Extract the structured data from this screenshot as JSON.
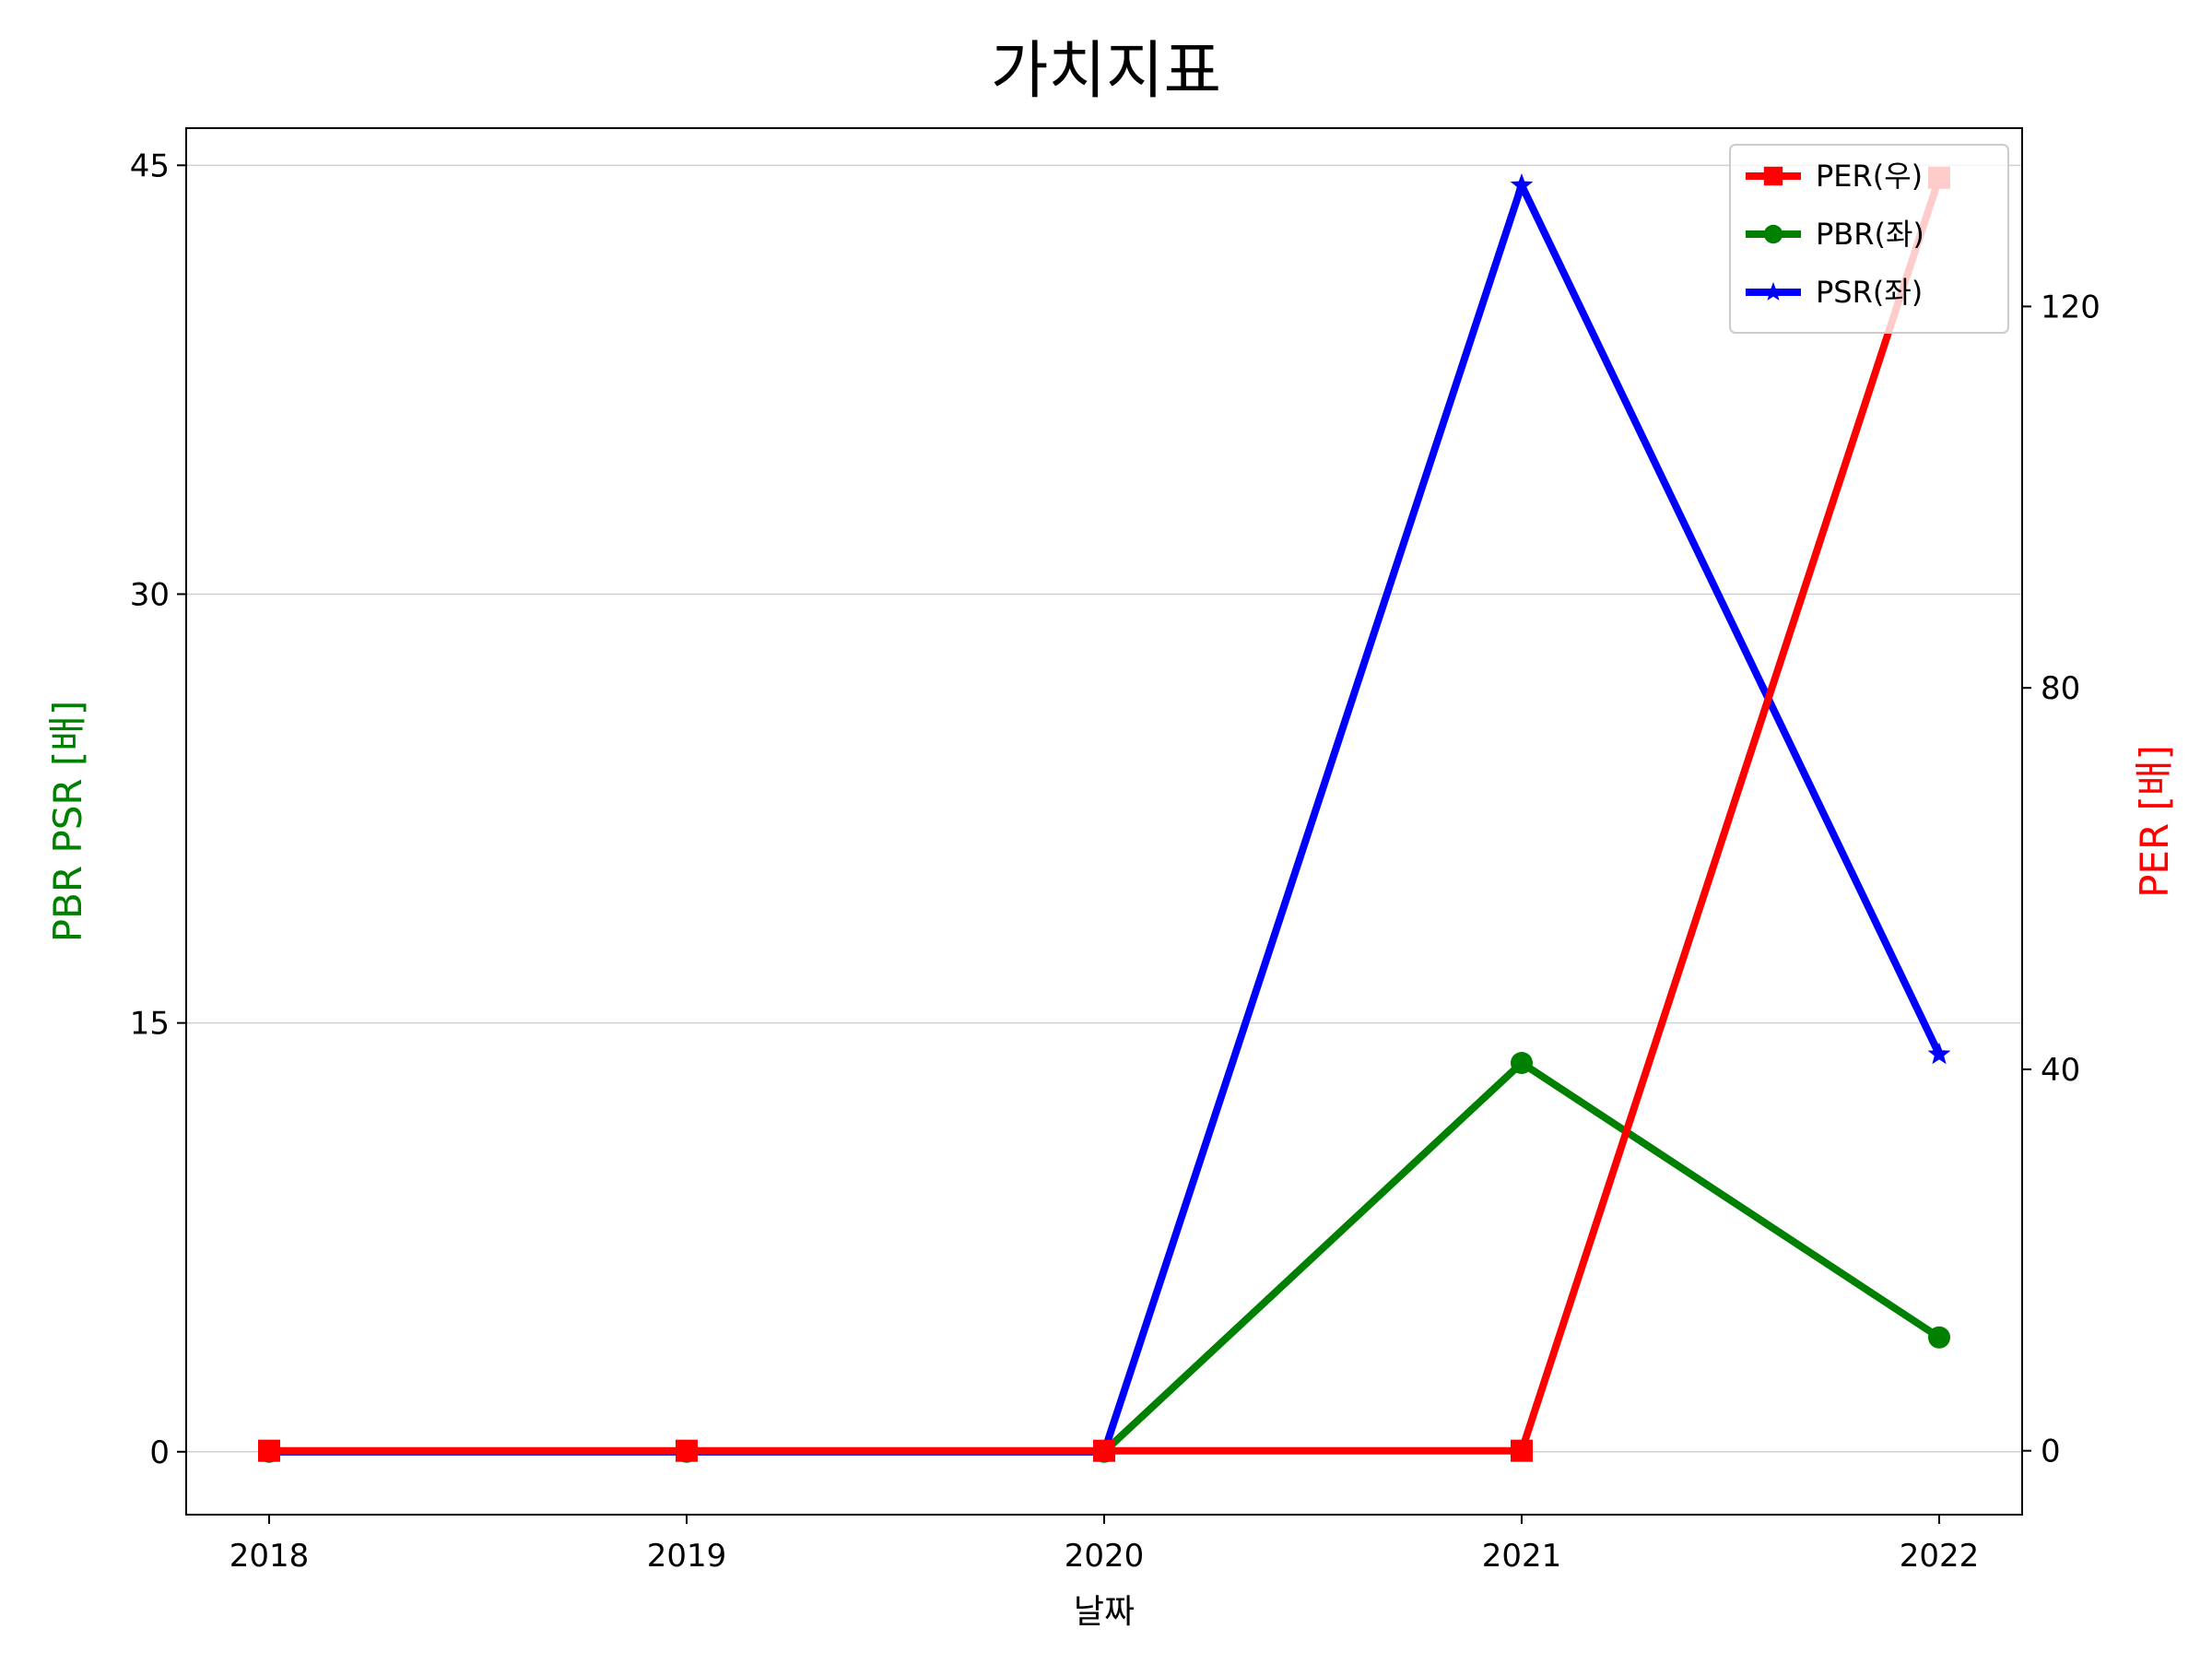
{
  "chart_data": {
    "type": "line",
    "title": "가치지표",
    "xlabel": "날짜",
    "ylabel_left": "PBR PSR [배]",
    "ylabel_right": "PER [배]",
    "categories": [
      "2018",
      "2019",
      "2020",
      "2021",
      "2022"
    ],
    "y_left": {
      "ticks": [
        0,
        15,
        30,
        45
      ],
      "ylim": [
        -2.2,
        46.3
      ],
      "grid": true
    },
    "y_right": {
      "ticks": [
        0,
        40,
        80,
        120
      ],
      "ylim": [
        -6.7,
        138.7
      ]
    },
    "series": [
      {
        "name": "PER(우)",
        "axis": "right",
        "color": "#ff0000",
        "marker": "square",
        "values": [
          0,
          0,
          0,
          0,
          133.5
        ]
      },
      {
        "name": "PBR(좌)",
        "axis": "left",
        "color": "#008000",
        "marker": "circle",
        "values": [
          0,
          0,
          0,
          13.6,
          4.0
        ]
      },
      {
        "name": "PSR(좌)",
        "axis": "left",
        "color": "#0000ff",
        "marker": "star",
        "values": [
          0,
          0,
          0,
          44.3,
          13.9
        ]
      }
    ],
    "legend_position": "top-right"
  }
}
